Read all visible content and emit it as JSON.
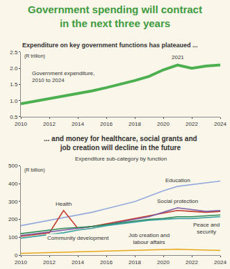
{
  "chart_data": [
    {
      "type": "line",
      "title": "Government spending will contract in the next three years",
      "subtitle": "Expenditure on key government functions has plateaued ...",
      "ylabel": "(R trillion)",
      "x": [
        2010,
        2011,
        2012,
        2013,
        2014,
        2015,
        2016,
        2017,
        2018,
        2019,
        2020,
        2021,
        2022,
        2023,
        2024
      ],
      "series": [
        {
          "name": "Government expenditure, 2010 to 2024",
          "color": "#4caf50",
          "values": [
            0.9,
            0.98,
            1.05,
            1.12,
            1.2,
            1.3,
            1.4,
            1.5,
            1.62,
            1.75,
            1.95,
            2.1,
            2.0,
            2.07,
            2.1
          ]
        }
      ],
      "annotations": [
        {
          "text": "2021",
          "x": 2021
        }
      ],
      "xlim": [
        2010,
        2024
      ],
      "xticks": [
        2010,
        2012,
        2014,
        2016,
        2018,
        2020,
        2022,
        2024
      ],
      "ylim": [
        0.5,
        2.5
      ],
      "yticks": [
        0.5,
        {
          "value": 1,
          "label": "1.0"
        },
        1.5,
        {
          "value": 2,
          "label": "2.0"
        },
        2.5
      ],
      "grid": false
    },
    {
      "type": "line",
      "title": "... and money for healthcare, social grants and job creation will decline in the future",
      "subtitle": "Expenditure sub-category by function",
      "ylabel": "(R billion)",
      "x": [
        2010,
        2011,
        2012,
        2013,
        2014,
        2015,
        2016,
        2017,
        2018,
        2019,
        2020,
        2021,
        2022,
        2023,
        2024
      ],
      "series": [
        {
          "name": "Education",
          "color": "#94a9dc",
          "values": [
            165,
            180,
            195,
            210,
            225,
            240,
            260,
            280,
            300,
            330,
            360,
            385,
            395,
            405,
            415
          ]
        },
        {
          "name": "Health",
          "color": "#c0392b",
          "values": [
            105,
            115,
            125,
            250,
            150,
            160,
            175,
            190,
            205,
            220,
            235,
            250,
            245,
            240,
            245
          ]
        },
        {
          "name": "Social protection",
          "color": "#7b5ea7",
          "values": [
            110,
            120,
            130,
            140,
            150,
            160,
            170,
            185,
            200,
            215,
            240,
            265,
            255,
            245,
            250
          ]
        },
        {
          "name": "Peace and security",
          "color": "#2e8b57",
          "values": [
            120,
            130,
            140,
            150,
            155,
            160,
            170,
            180,
            190,
            200,
            205,
            215,
            215,
            220,
            225
          ]
        },
        {
          "name": "Community development",
          "color": "#3aa0a0",
          "values": [
            95,
            105,
            115,
            125,
            140,
            150,
            165,
            175,
            185,
            195,
            200,
            205,
            205,
            210,
            215
          ]
        },
        {
          "name": "Job creation and labour affairs",
          "color": "#e6a817",
          "values": [
            10,
            12,
            14,
            16,
            18,
            20,
            22,
            24,
            26,
            28,
            30,
            33,
            30,
            28,
            26
          ]
        }
      ],
      "xlim": [
        2010,
        2024
      ],
      "xticks": [
        2010,
        2012,
        2014,
        2016,
        2018,
        2020,
        2022,
        2024
      ],
      "ylim": [
        0,
        500
      ],
      "yticks": [
        0,
        100,
        200,
        300,
        400,
        500
      ],
      "grid": false
    }
  ]
}
